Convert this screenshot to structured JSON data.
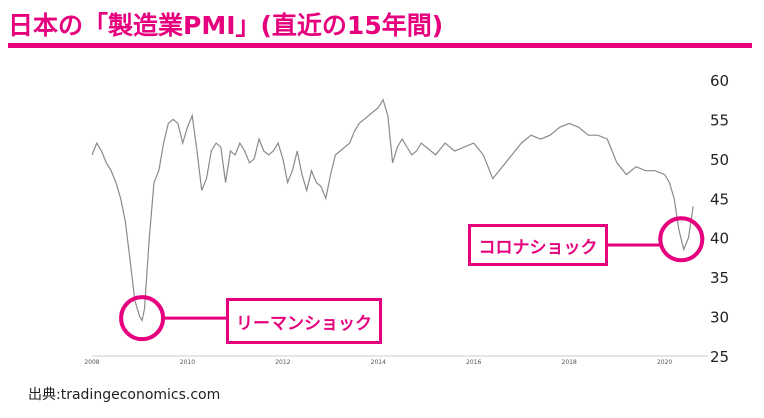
{
  "header": {
    "title": "日本の「製造業PMI」(直近の15年間)"
  },
  "source": {
    "text": "出典:tradingeconomics.com"
  },
  "annotations": {
    "lehman_label": "リーマンショック",
    "corona_label": "コロナショック"
  },
  "colors": {
    "accent": "#e6007e",
    "line": "#8a8a8a",
    "tick_text": "#555555"
  },
  "chart_data": {
    "type": "line",
    "title": "日本の「製造業PMI」(直近の15年間)",
    "xlabel": "",
    "ylabel": "",
    "ylim": [
      25,
      60
    ],
    "xlim": [
      2008,
      2020.7
    ],
    "grid": false,
    "x_ticks": [
      "2008",
      "2010",
      "2012",
      "2014",
      "2016",
      "2018",
      "2020"
    ],
    "y_ticks_right": [
      "60",
      "55",
      "50",
      "45",
      "40",
      "35",
      "30",
      "25"
    ],
    "series": [
      {
        "x": [
          2008.0,
          2008.1,
          2008.2,
          2008.3,
          2008.4,
          2008.5,
          2008.6,
          2008.7,
          2008.8,
          2008.9,
          2009.0,
          2009.05,
          2009.1,
          2009.2,
          2009.3,
          2009.4,
          2009.5,
          2009.6,
          2009.7,
          2009.8,
          2009.9,
          2010.0,
          2010.1,
          2010.2,
          2010.3,
          2010.4,
          2010.5,
          2010.6,
          2010.7,
          2010.8,
          2010.9,
          2011.0,
          2011.1,
          2011.2,
          2011.3,
          2011.4,
          2011.5,
          2011.6,
          2011.7,
          2011.8,
          2011.9,
          2012.0,
          2012.1,
          2012.2,
          2012.3,
          2012.4,
          2012.5,
          2012.6,
          2012.7,
          2012.8,
          2012.9,
          2013.0,
          2013.1,
          2013.2,
          2013.3,
          2013.4,
          2013.5,
          2013.6,
          2013.7,
          2013.8,
          2013.9,
          2014.0,
          2014.1,
          2014.2,
          2014.3,
          2014.4,
          2014.5,
          2014.6,
          2014.7,
          2014.8,
          2014.9,
          2015.0,
          2015.2,
          2015.4,
          2015.6,
          2015.8,
          2016.0,
          2016.2,
          2016.4,
          2016.6,
          2016.8,
          2017.0,
          2017.2,
          2017.4,
          2017.6,
          2017.8,
          2018.0,
          2018.2,
          2018.4,
          2018.6,
          2018.8,
          2019.0,
          2019.2,
          2019.4,
          2019.6,
          2019.8,
          2020.0,
          2020.1,
          2020.2,
          2020.3,
          2020.4,
          2020.5,
          2020.6
        ],
        "values": [
          50.5,
          52.0,
          51.0,
          49.5,
          48.5,
          47.0,
          45.0,
          42.0,
          37.0,
          32.0,
          30.0,
          29.5,
          31.0,
          40.0,
          47.0,
          48.5,
          52.0,
          54.5,
          55.0,
          54.5,
          52.0,
          54.0,
          55.5,
          51.0,
          46.0,
          47.5,
          51.0,
          52.0,
          51.5,
          47.0,
          51.0,
          50.5,
          52.0,
          51.0,
          49.5,
          50.0,
          52.5,
          51.0,
          50.5,
          51.0,
          52.0,
          50.0,
          47.0,
          48.5,
          51.0,
          48.0,
          46.0,
          48.5,
          47.0,
          46.5,
          45.0,
          48.0,
          50.5,
          51.0,
          51.5,
          52.0,
          53.5,
          54.5,
          55.0,
          55.5,
          56.0,
          56.5,
          57.5,
          55.5,
          49.5,
          51.5,
          52.5,
          51.5,
          50.5,
          51.0,
          52.0,
          51.5,
          50.5,
          52.0,
          51.0,
          51.5,
          52.0,
          50.5,
          47.5,
          49.0,
          50.5,
          52.0,
          53.0,
          52.5,
          53.0,
          54.0,
          54.5,
          54.0,
          53.0,
          53.0,
          52.5,
          49.5,
          48.0,
          49.0,
          48.5,
          48.5,
          48.0,
          47.0,
          45.0,
          41.0,
          38.5,
          40.0,
          44.0
        ]
      }
    ]
  }
}
